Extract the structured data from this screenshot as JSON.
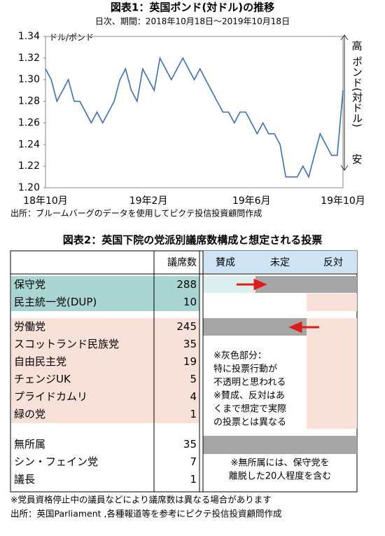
{
  "chart_data": {
    "type": "line",
    "title": "図表1：英国ポンド(対ドル)の推移",
    "subtitle": "日次、期間：2018年10月18日～2019年10月18日",
    "y_label": "ドル/ポンド",
    "right_annotation": {
      "high": "高",
      "middle": "ポンド(対ドル)",
      "low": "安"
    },
    "source": "出所：ブルームバーグのデータを使用してピクテ投信投資顧問作成",
    "categories": [
      "18年10月",
      null,
      null,
      null,
      null,
      null,
      null,
      null,
      null,
      null,
      null,
      null,
      null,
      null,
      null,
      null,
      null,
      null,
      "19年2月",
      null,
      null,
      null,
      null,
      null,
      null,
      null,
      null,
      null,
      null,
      null,
      null,
      null,
      null,
      null,
      null,
      null,
      "19年6月",
      null,
      null,
      null,
      null,
      null,
      null,
      null,
      null,
      null,
      null,
      null,
      null,
      null,
      null,
      null,
      "19年10月"
    ],
    "values": [
      1.31,
      1.3,
      1.28,
      1.29,
      1.3,
      1.28,
      1.28,
      1.27,
      1.26,
      1.27,
      1.26,
      1.27,
      1.28,
      1.3,
      1.31,
      1.29,
      1.28,
      1.31,
      1.3,
      1.29,
      1.32,
      1.31,
      1.3,
      1.31,
      1.32,
      1.31,
      1.3,
      1.31,
      1.3,
      1.29,
      1.28,
      1.27,
      1.27,
      1.26,
      1.27,
      1.27,
      1.26,
      1.25,
      1.26,
      1.25,
      1.25,
      1.24,
      1.21,
      1.21,
      1.21,
      1.22,
      1.21,
      1.23,
      1.25,
      1.24,
      1.23,
      1.23,
      1.29
    ],
    "color": "#3a6fb7",
    "ylim": [
      1.2,
      1.34
    ],
    "yticks": [
      {
        "value": 1.2,
        "label": "1.20"
      },
      1.22,
      1.24,
      1.26,
      1.28,
      {
        "value": 1.3,
        "label": "1.30"
      },
      1.32,
      1.34
    ]
  },
  "table": {
    "title": "図表2：英国下院の党派別議席数構成と想定される投票",
    "header": [
      "議席数",
      "賛成",
      "未定",
      "反対"
    ],
    "groups": [
      [
        [
          "保守党",
          288
        ],
        [
          "民主統一党(DUP)",
          10
        ]
      ],
      [
        [
          "労働党",
          245
        ],
        [
          "スコットランド民族党",
          35
        ],
        [
          "自由民主党",
          19
        ],
        [
          "チェンジUK",
          5
        ],
        [
          "プライドカムリ",
          4
        ],
        [
          "緑の党",
          1
        ]
      ],
      [
        [
          "無所属",
          35
        ],
        [
          "シン・フェイン党",
          7
        ],
        [
          "議長",
          1
        ]
      ]
    ],
    "note_lines": [
      "※灰色部分：",
      "特に投票行動が",
      "不透明と思われる",
      "※賛成、反対はあ",
      "くまで想定で実際",
      "の投票とは異なる"
    ],
    "note2_lines": [
      "※無所属には、保守党を",
      "離脱した20人程度を含む"
    ],
    "footnotes": [
      "※党員資格停止中の議員などにより議席数は異なる場合があります",
      "出所：英国Parliament ,各種報道等を参考にピクテ投信投資顧問作成"
    ]
  }
}
